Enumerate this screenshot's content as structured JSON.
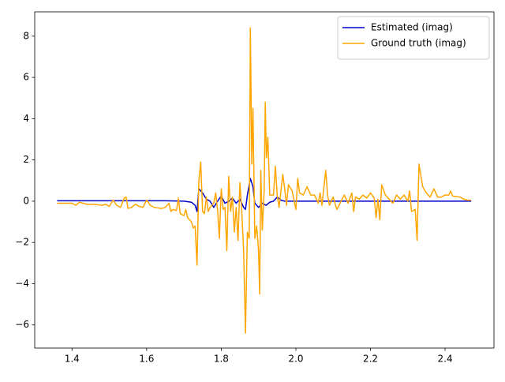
{
  "chart_data": {
    "type": "line",
    "xlim": [
      1.3,
      2.531
    ],
    "ylim": [
      -7.12,
      9.18
    ],
    "xticks": [
      1.4,
      1.6,
      1.8,
      {
        "value": 2,
        "label": "2.0"
      },
      2.2,
      2.4
    ],
    "yticks": [
      {
        "value": -6,
        "label": "−6"
      },
      {
        "value": -4,
        "label": "−4"
      },
      {
        "value": -2,
        "label": "−2"
      },
      0,
      2,
      4,
      6,
      8
    ],
    "legend": "upper right",
    "series": [
      {
        "name": "Estimated (imag)",
        "color": "#0000cc",
        "x": [
          1.36,
          1.5,
          1.65,
          1.7,
          1.72,
          1.73,
          1.735,
          1.74,
          1.75,
          1.76,
          1.77,
          1.78,
          1.79,
          1.8,
          1.81,
          1.82,
          1.83,
          1.84,
          1.85,
          1.86,
          1.865,
          1.87,
          1.878,
          1.885,
          1.89,
          1.9,
          1.91,
          1.92,
          1.93,
          1.94,
          1.95,
          1.96,
          1.97,
          2.0,
          2.47
        ],
        "values": [
          0.02,
          0.02,
          0.02,
          0,
          -0.05,
          -0.2,
          -0.5,
          0.6,
          0.4,
          0.1,
          0,
          -0.3,
          0,
          0.25,
          -0.1,
          0,
          0.15,
          -0.1,
          0.1,
          -0.3,
          -0.4,
          0.3,
          1.1,
          0.7,
          -0.1,
          -0.3,
          -0.1,
          -0.2,
          -0.05,
          0,
          0.2,
          0.05,
          0,
          0,
          0
        ]
      },
      {
        "name": "Ground truth (imag)",
        "color": "#ffa500",
        "x": [
          1.36,
          1.38,
          1.4,
          1.41,
          1.42,
          1.44,
          1.46,
          1.48,
          1.49,
          1.5,
          1.51,
          1.52,
          1.53,
          1.54,
          1.545,
          1.55,
          1.56,
          1.57,
          1.58,
          1.59,
          1.6,
          1.61,
          1.62,
          1.64,
          1.65,
          1.66,
          1.665,
          1.67,
          1.68,
          1.685,
          1.69,
          1.7,
          1.705,
          1.71,
          1.72,
          1.725,
          1.73,
          1.735,
          1.74,
          1.745,
          1.75,
          1.755,
          1.76,
          1.765,
          1.77,
          1.78,
          1.785,
          1.79,
          1.795,
          1.8,
          1.805,
          1.81,
          1.815,
          1.82,
          1.825,
          1.83,
          1.835,
          1.84,
          1.845,
          1.85,
          1.855,
          1.86,
          1.865,
          1.87,
          1.875,
          1.878,
          1.882,
          1.885,
          1.89,
          1.895,
          1.9,
          1.903,
          1.906,
          1.91,
          1.915,
          1.918,
          1.921,
          1.925,
          1.93,
          1.94,
          1.945,
          1.95,
          1.955,
          1.96,
          1.965,
          1.97,
          1.975,
          1.98,
          1.99,
          2.0,
          2.005,
          2.01,
          2.02,
          2.03,
          2.04,
          2.05,
          2.06,
          2.065,
          2.07,
          2.08,
          2.085,
          2.09,
          2.1,
          2.11,
          2.12,
          2.13,
          2.14,
          2.15,
          2.155,
          2.16,
          2.17,
          2.18,
          2.19,
          2.2,
          2.21,
          2.215,
          2.22,
          2.225,
          2.23,
          2.24,
          2.25,
          2.26,
          2.27,
          2.28,
          2.29,
          2.3,
          2.305,
          2.31,
          2.32,
          2.325,
          2.33,
          2.34,
          2.35,
          2.36,
          2.37,
          2.38,
          2.39,
          2.4,
          2.41,
          2.415,
          2.42,
          2.44,
          2.45,
          2.46,
          2.47
        ],
        "values": [
          -0.1,
          -0.1,
          -0.1,
          -0.2,
          -0.05,
          -0.15,
          -0.15,
          -0.2,
          -0.15,
          -0.25,
          0.05,
          -0.2,
          -0.3,
          0.15,
          0.2,
          -0.35,
          -0.3,
          -0.15,
          -0.25,
          -0.3,
          0.05,
          -0.2,
          -0.3,
          -0.35,
          -0.3,
          -0.1,
          -0.5,
          -0.4,
          -0.45,
          0.15,
          -0.6,
          -0.7,
          -0.4,
          -0.8,
          -1,
          -1.3,
          -1.2,
          -3.1,
          1,
          1.9,
          -0.5,
          -0.6,
          0.2,
          -0.5,
          -0.3,
          -0.1,
          0.4,
          -0.4,
          -1.8,
          0.6,
          -0.4,
          -0.3,
          -2.4,
          1.2,
          -0.5,
          0.2,
          -1.5,
          -0.3,
          -1.9,
          0.9,
          -0.5,
          -2.4,
          -6.4,
          -1.5,
          -1.8,
          8.4,
          1.8,
          4.5,
          -1.8,
          -1.2,
          -2.4,
          -4.5,
          1.5,
          -1.4,
          0.5,
          4.8,
          2.1,
          3.1,
          0.3,
          0.3,
          1.7,
          0.3,
          -0.3,
          0.5,
          1.3,
          0.6,
          -0.2,
          0.8,
          0.5,
          -0.4,
          1.1,
          0.4,
          0.3,
          0.7,
          0.3,
          0.3,
          -0.1,
          0.4,
          -0.2,
          1.5,
          0.3,
          -0.2,
          0.2,
          -0.4,
          -0.05,
          0.3,
          -0.1,
          0.4,
          -0.5,
          0.2,
          0.1,
          0.3,
          0.15,
          0.4,
          0.15,
          -0.8,
          0.1,
          -0.9,
          0.8,
          0.3,
          0.1,
          -0.1,
          0.3,
          0.1,
          0.3,
          0,
          0.5,
          -0.5,
          -0.4,
          -1.9,
          1.8,
          0.7,
          0.4,
          0.2,
          0.6,
          0.2,
          0.2,
          0.3,
          0.3,
          0.5,
          0.25,
          0.2,
          0.1,
          0.05,
          0.05
        ]
      }
    ]
  }
}
